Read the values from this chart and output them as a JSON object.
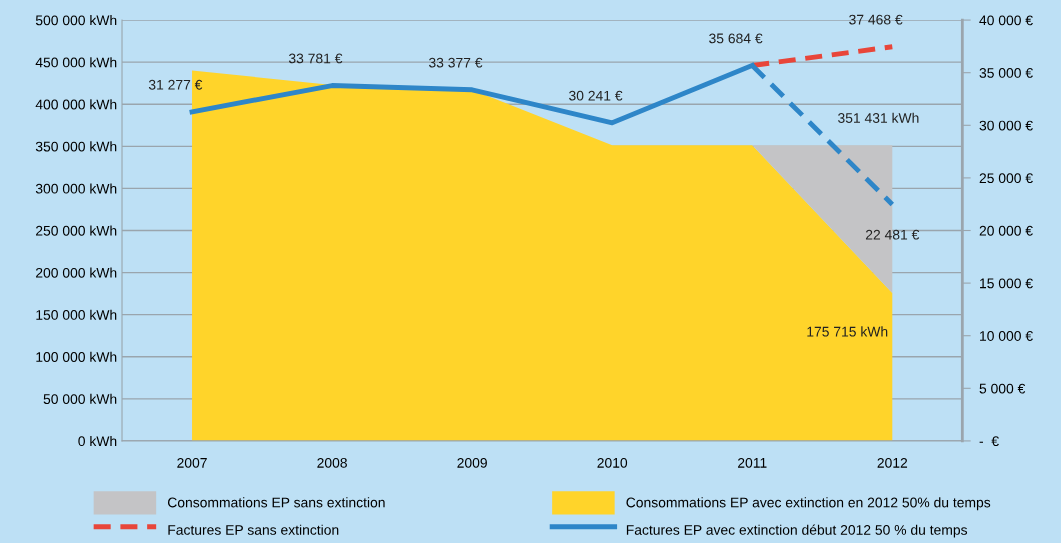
{
  "chart_data": {
    "type": "area",
    "categories": [
      "2007",
      "2008",
      "2009",
      "2010",
      "2011",
      "2012"
    ],
    "series": [
      {
        "name": "Consommations EP sans extinction",
        "color": "#c4c4c6",
        "values": [
          null,
          null,
          null,
          null,
          351431,
          351431
        ],
        "value_labels": [
          null,
          null,
          null,
          null,
          null,
          "351 431 kWh"
        ]
      },
      {
        "name": "Consommations EP avec extinction en 2012 50% du temps",
        "color": "#ffd42a",
        "values": [
          440000,
          423000,
          417000,
          351431,
          351431,
          175715
        ],
        "value_labels": [
          null,
          null,
          null,
          null,
          null,
          "175 715 kWh"
        ]
      },
      {
        "name": "Factures EP sans extinction",
        "type": "line",
        "axis": "y2",
        "color": "#e8463a",
        "line_style": "dashed",
        "values": [
          null,
          null,
          null,
          null,
          35684,
          37468
        ],
        "value_labels": [
          null,
          null,
          null,
          null,
          null,
          "37 468 €"
        ]
      },
      {
        "name": "Factures EP avec extinction début 2012 50 % du temps",
        "type": "line",
        "axis": "y2",
        "color": "#2e86c8",
        "line_style": "solid",
        "values": [
          31277,
          33781,
          33377,
          30241,
          35684,
          null
        ],
        "value_labels": [
          "31 277 €",
          "33 781 €",
          "33 377 €",
          "30 241 €",
          "35 684 €",
          null
        ]
      },
      {
        "type": "line",
        "axis": "y2",
        "color": "#2e86c8",
        "line_style": "dashed",
        "values": [
          null,
          null,
          null,
          null,
          35684,
          22481
        ],
        "value_labels": [
          null,
          null,
          null,
          null,
          null,
          "22 481 €"
        ]
      }
    ],
    "ylim": [
      0,
      500000
    ],
    "yticks": [
      {
        "value": 0,
        "label": "0 kWh"
      },
      {
        "value": 50000,
        "label": "50 000 kWh"
      },
      {
        "value": 100000,
        "label": "100 000 kWh"
      },
      {
        "value": 150000,
        "label": "150 000 kWh"
      },
      {
        "value": 200000,
        "label": "200 000 kWh"
      },
      {
        "value": 250000,
        "label": "250 000 kWh"
      },
      {
        "value": 300000,
        "label": "300 000 kWh"
      },
      {
        "value": 350000,
        "label": "350 000 kWh"
      },
      {
        "value": 400000,
        "label": "400 000 kWh"
      },
      {
        "value": 450000,
        "label": "450 000 kWh"
      },
      {
        "value": 500000,
        "label": "500 000 kWh"
      }
    ],
    "y2lim": [
      0,
      40000
    ],
    "y2ticks": [
      {
        "value": 0,
        "label": "-  €"
      },
      {
        "value": 5000,
        "label": "5 000 €"
      },
      {
        "value": 10000,
        "label": "10 000 €"
      },
      {
        "value": 15000,
        "label": "15 000 €"
      },
      {
        "value": 20000,
        "label": "20 000 €"
      },
      {
        "value": 25000,
        "label": "25 000 €"
      },
      {
        "value": 30000,
        "label": "30 000 €"
      },
      {
        "value": 35000,
        "label": "35 000 €"
      },
      {
        "value": 40000,
        "label": "40 000 €"
      }
    ],
    "grid": true,
    "legend": "bottom",
    "marker": "none"
  }
}
